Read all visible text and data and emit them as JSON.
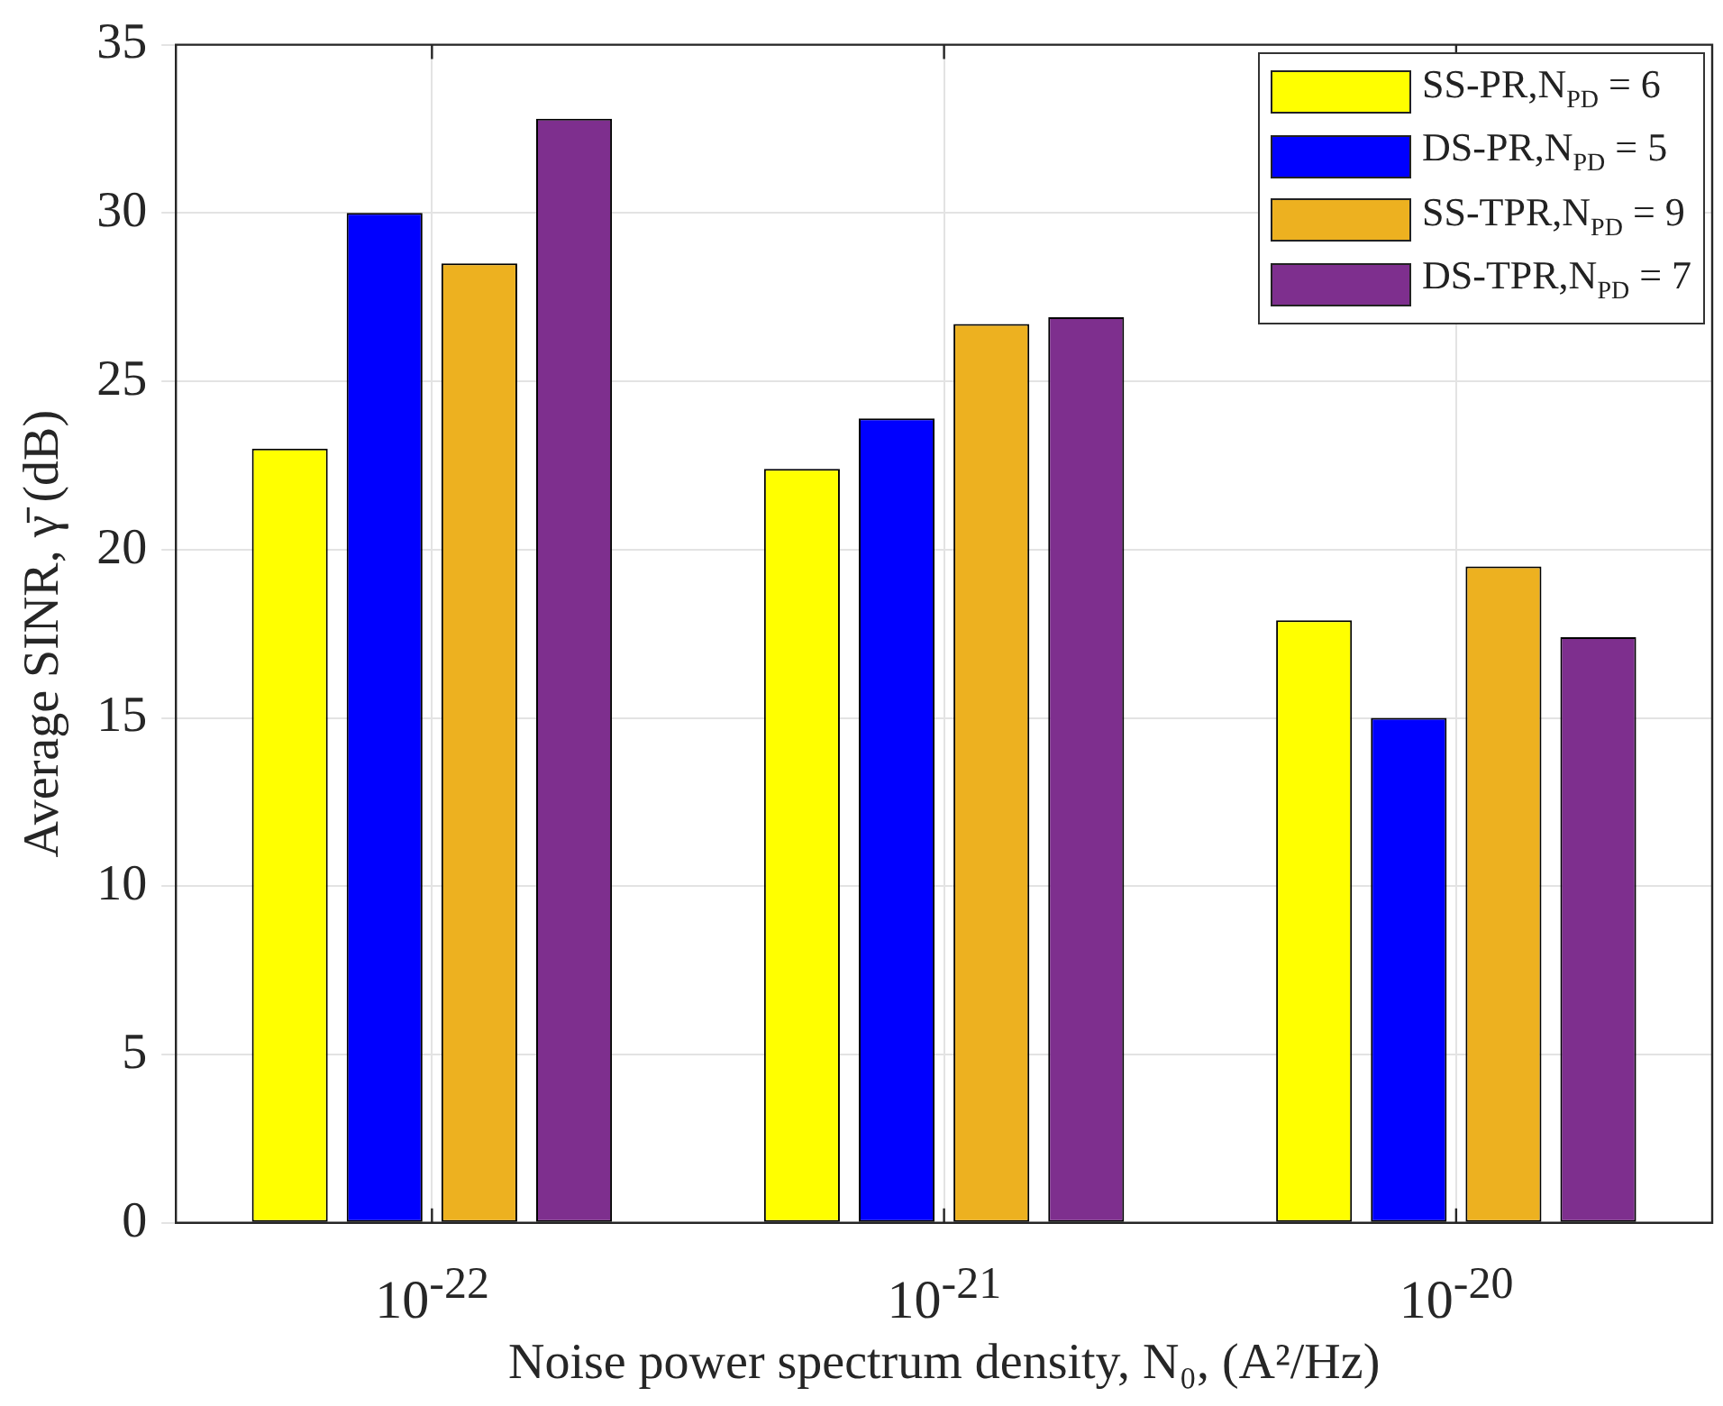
{
  "chart_data": {
    "type": "bar",
    "xlabel": "Noise power spectrum density, N₀, (A²/Hz)",
    "ylabel": "Average SINR, γ̄ (dB)",
    "categories": [
      "10$^{-22}$",
      "10$^{-21}$",
      "10$^{-20}$"
    ],
    "series": [
      {
        "name": "SS-PR,N$_{PD}$ = 6",
        "color": "#ffff00",
        "values": [
          23.0,
          22.4,
          17.9
        ]
      },
      {
        "name": "DS-PR,N$_{PD}$ = 5",
        "color": "#0000ff",
        "values": [
          30.0,
          23.9,
          15.0
        ]
      },
      {
        "name": "SS-TPR,N$_{PD}$ = 9",
        "color": "#edb120",
        "values": [
          28.5,
          26.7,
          19.5
        ]
      },
      {
        "name": "DS-TPR,N$_{PD}$ = 7",
        "color": "#7e2f8e",
        "values": [
          32.8,
          26.9,
          17.4
        ]
      }
    ],
    "ylim": [
      0,
      35
    ],
    "yticks": [
      0,
      5,
      10,
      15,
      20,
      25,
      30,
      35
    ],
    "grid": true,
    "legend": "top right"
  }
}
